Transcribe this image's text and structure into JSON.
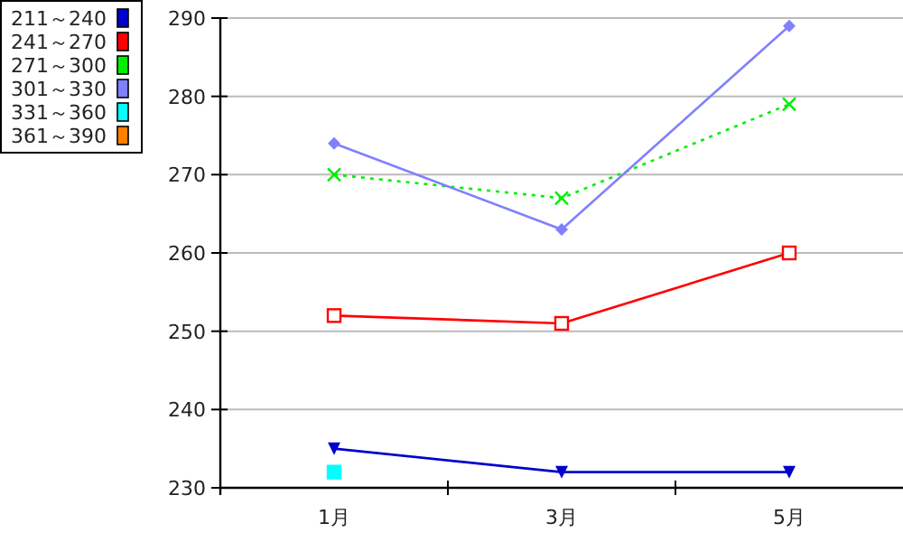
{
  "chart_data": {
    "type": "line",
    "categories": [
      "1月",
      "3月",
      "5月"
    ],
    "series": [
      {
        "name": "211～240",
        "color": "#0000cc",
        "values": [
          235,
          232,
          232
        ],
        "marker": "triangle",
        "line_style": "solid"
      },
      {
        "name": "241～270",
        "color": "#ff0000",
        "values": [
          252,
          251,
          260
        ],
        "marker": "square",
        "line_style": "solid"
      },
      {
        "name": "271～300",
        "color": "#00ee00",
        "values": [
          270,
          267,
          279
        ],
        "marker": "cross",
        "line_style": "dotted"
      },
      {
        "name": "301～330",
        "color": "#8080ff",
        "values": [
          274,
          263,
          289
        ],
        "marker": "diamond",
        "line_style": "solid"
      },
      {
        "name": "331～360",
        "color": "#00ffff",
        "values": [
          232,
          null,
          null
        ],
        "marker": "square",
        "line_style": "solid"
      },
      {
        "name": "361～390",
        "color": "#ff8000",
        "values": [
          null,
          null,
          null
        ],
        "line_style": "solid"
      }
    ],
    "ylim": [
      230,
      290
    ],
    "yticks": [
      230,
      240,
      250,
      260,
      270,
      280,
      290
    ],
    "grid": "y",
    "legend": "top left"
  }
}
